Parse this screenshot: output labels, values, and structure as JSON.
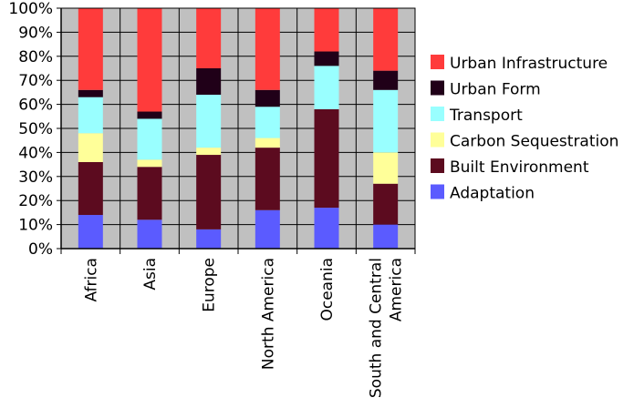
{
  "chart_data": {
    "type": "bar",
    "stacked": true,
    "normalized": true,
    "title": "",
    "xlabel": "",
    "ylabel": "",
    "ylim": [
      0,
      100
    ],
    "yticks": [
      "0%",
      "10%",
      "20%",
      "30%",
      "40%",
      "50%",
      "60%",
      "70%",
      "80%",
      "90%",
      "100%"
    ],
    "categories": [
      "Africa",
      "Asia",
      "Europe",
      "North America",
      "Oceania",
      "South and Central America"
    ],
    "category_lines": [
      [
        "Africa"
      ],
      [
        "Asia"
      ],
      [
        "Europe"
      ],
      [
        "North America"
      ],
      [
        "Oceania"
      ],
      [
        "South and Central",
        "America"
      ]
    ],
    "series": [
      {
        "name": "Adaptation",
        "color": "#5b5bff",
        "values": [
          14,
          12,
          8,
          16,
          17,
          10
        ]
      },
      {
        "name": "Built Environment",
        "color": "#5c0b1f",
        "values": [
          22,
          22,
          31,
          26,
          41,
          17
        ]
      },
      {
        "name": "Carbon Sequestration",
        "color": "#ffff99",
        "values": [
          12,
          3,
          3,
          4,
          0,
          13
        ]
      },
      {
        "name": "Transport",
        "color": "#99ffff",
        "values": [
          15,
          17,
          22,
          13,
          18,
          26
        ]
      },
      {
        "name": "Urban Form",
        "color": "#200018",
        "values": [
          3,
          3,
          11,
          7,
          6,
          8
        ]
      },
      {
        "name": "Urban Infrastructure",
        "color": "#ff3b3b",
        "values": [
          34,
          43,
          25,
          34,
          18,
          26
        ]
      }
    ],
    "legend_order": [
      "Urban Infrastructure",
      "Urban Form",
      "Transport",
      "Carbon Sequestration",
      "Built Environment",
      "Adaptation"
    ],
    "legend_position": "right",
    "grid": true,
    "plot_background": "#c0c0c0"
  }
}
